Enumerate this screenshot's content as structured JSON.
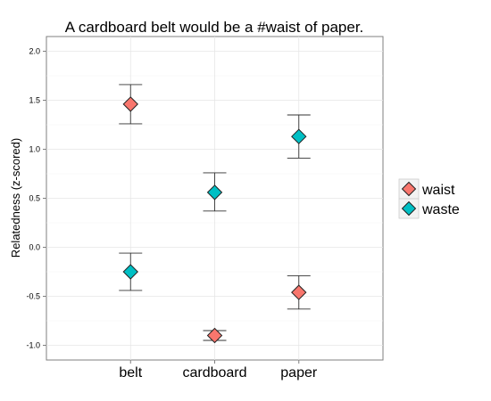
{
  "chart_data": {
    "type": "scatter",
    "title": "A cardboard belt would be a #waist of paper.",
    "xlabel": "",
    "ylabel": "Relatedness (z-scored)",
    "categories": [
      "belt",
      "cardboard",
      "paper"
    ],
    "ylim": [
      -1.15,
      2.15
    ],
    "yticks": [
      2.0,
      1.5,
      1.0,
      0.5,
      0.0,
      -0.5,
      -1.0
    ],
    "ytick_labels": [
      "2.0",
      "1.5",
      "1.0",
      "0.5",
      "0.0",
      "-0.5",
      "-1.0"
    ],
    "grid": true,
    "legend_position": "right",
    "series": [
      {
        "name": "waist",
        "color": "#F8766D",
        "values": [
          1.46,
          -0.9,
          -0.46
        ],
        "error_low": [
          1.26,
          -0.95,
          -0.63
        ],
        "error_high": [
          1.66,
          -0.85,
          -0.29
        ]
      },
      {
        "name": "waste",
        "color": "#00BFC4",
        "values": [
          -0.25,
          0.56,
          1.13
        ],
        "error_low": [
          -0.44,
          0.37,
          0.91
        ],
        "error_high": [
          -0.06,
          0.76,
          1.35
        ]
      }
    ]
  }
}
